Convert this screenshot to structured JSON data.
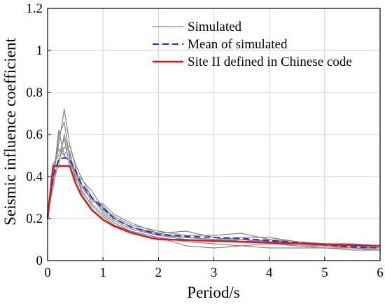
{
  "chart_data": {
    "type": "line",
    "xlabel": "Period/s",
    "ylabel": "Seismic influence coefficient",
    "xlim": [
      0,
      6
    ],
    "ylim": [
      0,
      1.2
    ],
    "xticks": [
      "0",
      "1",
      "2",
      "3",
      "4",
      "5",
      "6"
    ],
    "yticks": [
      "0",
      "0.2",
      "0.4",
      "0.6",
      "0.8",
      "1",
      "1.2"
    ],
    "grid": true,
    "legend_position": "top-right",
    "series": [
      {
        "name": "Simulated",
        "color": "#888888",
        "style": "solid",
        "members": [
          {
            "x": [
              0,
              0.1,
              0.2,
              0.3,
              0.4,
              0.5,
              0.6,
              0.8,
              1,
              1.2,
              1.5,
              2,
              2.5,
              3,
              3.5,
              4,
              4.5,
              5,
              5.5,
              6
            ],
            "y": [
              0.22,
              0.42,
              0.55,
              0.72,
              0.55,
              0.46,
              0.4,
              0.3,
              0.24,
              0.2,
              0.16,
              0.12,
              0.1,
              0.09,
              0.1,
              0.09,
              0.08,
              0.07,
              0.06,
              0.05
            ]
          },
          {
            "x": [
              0,
              0.1,
              0.2,
              0.3,
              0.4,
              0.5,
              0.6,
              0.8,
              1,
              1.2,
              1.5,
              2,
              2.5,
              3,
              3.5,
              4,
              4.5,
              5,
              5.5,
              6
            ],
            "y": [
              0.22,
              0.38,
              0.62,
              0.5,
              0.47,
              0.41,
              0.37,
              0.28,
              0.27,
              0.22,
              0.18,
              0.13,
              0.14,
              0.11,
              0.09,
              0.1,
              0.08,
              0.07,
              0.06,
              0.06
            ]
          },
          {
            "x": [
              0,
              0.1,
              0.2,
              0.3,
              0.4,
              0.5,
              0.6,
              0.8,
              1,
              1.2,
              1.5,
              2,
              2.5,
              3,
              3.5,
              4,
              4.5,
              5,
              5.5,
              6
            ],
            "y": [
              0.22,
              0.46,
              0.5,
              0.58,
              0.45,
              0.44,
              0.34,
              0.26,
              0.21,
              0.17,
              0.14,
              0.11,
              0.09,
              0.08,
              0.07,
              0.08,
              0.07,
              0.06,
              0.06,
              0.05
            ]
          },
          {
            "x": [
              0,
              0.1,
              0.2,
              0.3,
              0.4,
              0.5,
              0.6,
              0.8,
              1,
              1.2,
              1.5,
              2,
              2.5,
              3,
              3.5,
              4,
              4.5,
              5,
              5.5,
              6
            ],
            "y": [
              0.22,
              0.35,
              0.48,
              0.54,
              0.52,
              0.39,
              0.36,
              0.3,
              0.23,
              0.19,
              0.15,
              0.12,
              0.11,
              0.1,
              0.11,
              0.11,
              0.09,
              0.08,
              0.07,
              0.07
            ]
          },
          {
            "x": [
              0,
              0.1,
              0.2,
              0.3,
              0.4,
              0.5,
              0.6,
              0.8,
              1,
              1.2,
              1.5,
              2,
              2.5,
              3,
              3.5,
              4,
              4.5,
              5,
              5.5,
              6
            ],
            "y": [
              0.22,
              0.4,
              0.45,
              0.6,
              0.5,
              0.42,
              0.39,
              0.33,
              0.25,
              0.21,
              0.17,
              0.14,
              0.12,
              0.12,
              0.13,
              0.1,
              0.09,
              0.08,
              0.08,
              0.07
            ]
          },
          {
            "x": [
              0,
              0.1,
              0.2,
              0.3,
              0.4,
              0.5,
              0.6,
              0.8,
              1,
              1.2,
              1.5,
              2,
              2.5,
              3,
              3.5,
              4,
              4.5,
              5,
              5.5,
              6
            ],
            "y": [
              0.22,
              0.44,
              0.53,
              0.5,
              0.55,
              0.45,
              0.33,
              0.27,
              0.22,
              0.18,
              0.14,
              0.11,
              0.07,
              0.06,
              0.07,
              0.06,
              0.06,
              0.06,
              0.05,
              0.05
            ]
          },
          {
            "x": [
              0,
              0.1,
              0.2,
              0.3,
              0.4,
              0.5,
              0.6,
              0.8,
              1,
              1.2,
              1.5,
              2,
              2.5,
              3,
              3.5,
              4,
              4.5,
              5,
              5.5,
              6
            ],
            "y": [
              0.22,
              0.37,
              0.59,
              0.66,
              0.48,
              0.4,
              0.35,
              0.29,
              0.26,
              0.2,
              0.16,
              0.13,
              0.11,
              0.1,
              0.1,
              0.09,
              0.07,
              0.07,
              0.07,
              0.06
            ]
          }
        ]
      },
      {
        "name": "Mean of simulated",
        "color": "#1f2fd6",
        "style": "dashed",
        "x": [
          0,
          0.1,
          0.2,
          0.3,
          0.4,
          0.5,
          0.6,
          0.8,
          1,
          1.2,
          1.5,
          2,
          2.5,
          3,
          3.5,
          4,
          4.5,
          5,
          5.5,
          6
        ],
        "y": [
          0.22,
          0.4,
          0.48,
          0.49,
          0.48,
          0.43,
          0.37,
          0.3,
          0.25,
          0.2,
          0.16,
          0.125,
          0.115,
          0.11,
          0.105,
          0.095,
          0.085,
          0.075,
          0.065,
          0.06
        ]
      },
      {
        "name": "Site II defined in Chinese code",
        "color": "#e0161b",
        "style": "solid",
        "x": [
          0,
          0.1,
          0.1,
          0.4,
          0.5,
          0.6,
          0.8,
          1,
          1.2,
          1.5,
          1.8,
          2,
          3,
          4,
          5,
          6
        ],
        "y": [
          0.2,
          0.45,
          0.45,
          0.45,
          0.3715,
          0.3146,
          0.2404,
          0.1947,
          0.1637,
          0.1331,
          0.1122,
          0.1018,
          0.0935,
          0.0855,
          0.0775,
          0.0695
        ]
      }
    ]
  }
}
